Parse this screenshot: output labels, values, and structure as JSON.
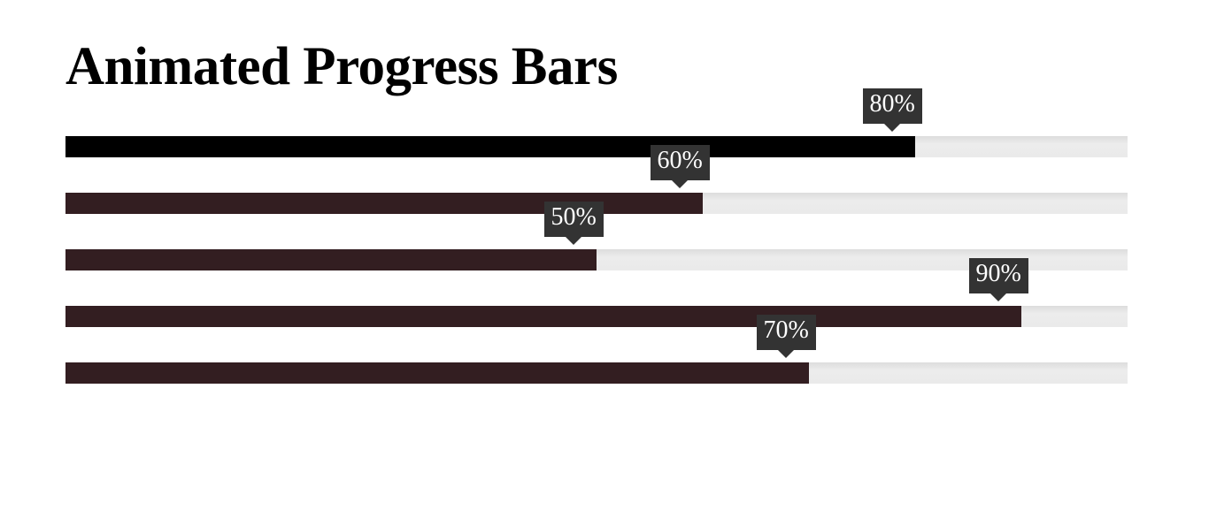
{
  "page": {
    "title": "Animated Progress Bars"
  },
  "colors": {
    "first_fill": "#000000",
    "fill": "#331e21",
    "track": "#e8e8e8",
    "tooltip_bg": "#333333",
    "tooltip_text": "#ffffff"
  },
  "progress_bars": [
    {
      "value": 80,
      "label": "80%"
    },
    {
      "value": 60,
      "label": "60%"
    },
    {
      "value": 50,
      "label": "50%"
    },
    {
      "value": 90,
      "label": "90%"
    },
    {
      "value": 70,
      "label": "70%"
    }
  ]
}
